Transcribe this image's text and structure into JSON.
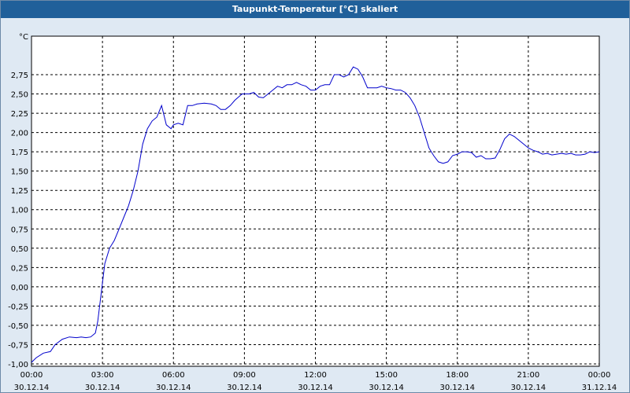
{
  "window": {
    "title": "Taupunkt-Temperatur [°C] skaliert"
  },
  "chart_data": {
    "type": "line",
    "title": "Taupunkt-Temperatur [°C] skaliert",
    "unit_label": "°C",
    "xlabel": "",
    "ylabel": "",
    "ylim": [
      -1.0,
      2.75
    ],
    "yticks": [
      "-1,00",
      "-0,75",
      "-0,50",
      "-0,25",
      "0,00",
      "0,25",
      "0,50",
      "0,75",
      "1,00",
      "1,25",
      "1,50",
      "1,75",
      "2,00",
      "2,25",
      "2,50",
      "2,75"
    ],
    "xlim": [
      0,
      24
    ],
    "xticks": [
      {
        "time": "00:00",
        "date": "30.12.14"
      },
      {
        "time": "03:00",
        "date": "30.12.14"
      },
      {
        "time": "06:00",
        "date": "30.12.14"
      },
      {
        "time": "09:00",
        "date": "30.12.14"
      },
      {
        "time": "12:00",
        "date": "30.12.14"
      },
      {
        "time": "15:00",
        "date": "30.12.14"
      },
      {
        "time": "18:00",
        "date": "30.12.14"
      },
      {
        "time": "21:00",
        "date": "30.12.14"
      },
      {
        "time": "00:00",
        "date": "31.12.14"
      }
    ],
    "grid": true,
    "line_color": "#0000cc",
    "series": [
      {
        "x": [
          0,
          0.2,
          0.5,
          0.8,
          1.0,
          1.3,
          1.6,
          1.9,
          2.1,
          2.3,
          2.5,
          2.7,
          2.8,
          2.9,
          3.0,
          3.1,
          3.3,
          3.5,
          3.7,
          3.9,
          4.1,
          4.3,
          4.5,
          4.7,
          4.9,
          5.1,
          5.3,
          5.5,
          5.7,
          5.9,
          6.0,
          6.2,
          6.4,
          6.6,
          6.8,
          7.0,
          7.3,
          7.6,
          7.8,
          8.0,
          8.2,
          8.4,
          8.6,
          8.9,
          9.2,
          9.4,
          9.6,
          9.8,
          10.0,
          10.2,
          10.4,
          10.6,
          10.8,
          11.0,
          11.2,
          11.4,
          11.6,
          11.8,
          12.0,
          12.2,
          12.4,
          12.6,
          12.8,
          13.0,
          13.2,
          13.4,
          13.6,
          13.8,
          14.0,
          14.2,
          14.4,
          14.6,
          14.8,
          15.0,
          15.2,
          15.4,
          15.6,
          15.8,
          16.0,
          16.2,
          16.4,
          16.6,
          16.8,
          17.0,
          17.2,
          17.4,
          17.6,
          17.8,
          18.0,
          18.2,
          18.4,
          18.6,
          18.8,
          19.0,
          19.2,
          19.4,
          19.6,
          19.8,
          20.0,
          20.2,
          20.4,
          20.6,
          20.8,
          21.0,
          21.2,
          21.4,
          21.6,
          21.8,
          22.0,
          22.2,
          22.4,
          22.6,
          22.8,
          23.0,
          23.2,
          23.4,
          23.6,
          23.8,
          24.0
        ],
        "y": [
          -0.98,
          -0.92,
          -0.86,
          -0.84,
          -0.75,
          -0.68,
          -0.65,
          -0.66,
          -0.65,
          -0.66,
          -0.65,
          -0.6,
          -0.45,
          -0.2,
          0.05,
          0.3,
          0.5,
          0.6,
          0.75,
          0.9,
          1.05,
          1.25,
          1.5,
          1.85,
          2.05,
          2.15,
          2.2,
          2.35,
          2.1,
          2.05,
          2.1,
          2.12,
          2.1,
          2.35,
          2.35,
          2.37,
          2.38,
          2.37,
          2.35,
          2.3,
          2.3,
          2.35,
          2.42,
          2.5,
          2.5,
          2.52,
          2.46,
          2.45,
          2.5,
          2.55,
          2.6,
          2.58,
          2.62,
          2.62,
          2.65,
          2.62,
          2.6,
          2.55,
          2.55,
          2.6,
          2.62,
          2.62,
          2.75,
          2.75,
          2.72,
          2.75,
          2.85,
          2.82,
          2.72,
          2.58,
          2.58,
          2.58,
          2.6,
          2.58,
          2.57,
          2.55,
          2.55,
          2.52,
          2.45,
          2.35,
          2.2,
          2.0,
          1.8,
          1.7,
          1.62,
          1.6,
          1.62,
          1.7,
          1.72,
          1.75,
          1.75,
          1.74,
          1.68,
          1.7,
          1.66,
          1.66,
          1.67,
          1.78,
          1.92,
          1.98,
          1.95,
          1.9,
          1.85,
          1.8,
          1.77,
          1.75,
          1.72,
          1.73,
          1.71,
          1.72,
          1.73,
          1.72,
          1.73,
          1.71,
          1.71,
          1.72,
          1.75,
          1.74,
          1.75
        ]
      }
    ]
  }
}
